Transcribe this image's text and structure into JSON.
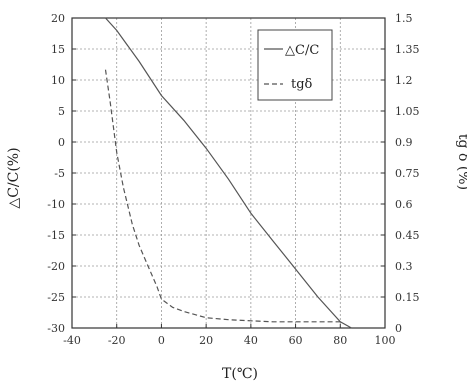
{
  "chart_data": {
    "type": "line",
    "xlabel": "T(℃)",
    "ylabel_left": "△C/C(%)",
    "ylabel_right": "tg δ (%)",
    "xlim": [
      -40,
      100
    ],
    "ylim_left": [
      -30,
      20
    ],
    "ylim_right": [
      0,
      1.5
    ],
    "x_ticks": [
      "-40",
      "-20",
      "0",
      "20",
      "40",
      "60",
      "80",
      "100"
    ],
    "y_left_ticks": [
      "20",
      "15",
      "10",
      "5",
      "0",
      "-5",
      "-10",
      "-15",
      "-20",
      "-25",
      "-30"
    ],
    "y_right_ticks": [
      "1.5",
      "1.35",
      "1.2",
      "1.05",
      "0.9",
      "0.75",
      "0.6",
      "0.45",
      "0.3",
      "0.15",
      "0"
    ],
    "grid": true,
    "legend_position": "top-right",
    "series": [
      {
        "name": "△C/C",
        "axis": "left",
        "style": "solid",
        "color": "#555555",
        "x": [
          -25,
          -20,
          -10,
          0,
          10,
          20,
          30,
          40,
          50,
          60,
          70,
          80,
          85
        ],
        "y": [
          20,
          18,
          13,
          7.5,
          3.5,
          -1,
          -6,
          -11.5,
          -16,
          -20.5,
          -25,
          -29,
          -30
        ]
      },
      {
        "name": "tgδ",
        "axis": "right",
        "style": "dashed",
        "color": "#555555",
        "x": [
          -25,
          -23,
          -20,
          -17,
          -13,
          -10,
          -6,
          -2,
          0,
          5,
          10,
          20,
          30,
          40,
          50,
          60,
          70,
          80
        ],
        "y": [
          1.25,
          1.1,
          0.85,
          0.68,
          0.5,
          0.4,
          0.3,
          0.2,
          0.14,
          0.1,
          0.08,
          0.05,
          0.04,
          0.035,
          0.03,
          0.03,
          0.03,
          0.03
        ]
      }
    ]
  }
}
